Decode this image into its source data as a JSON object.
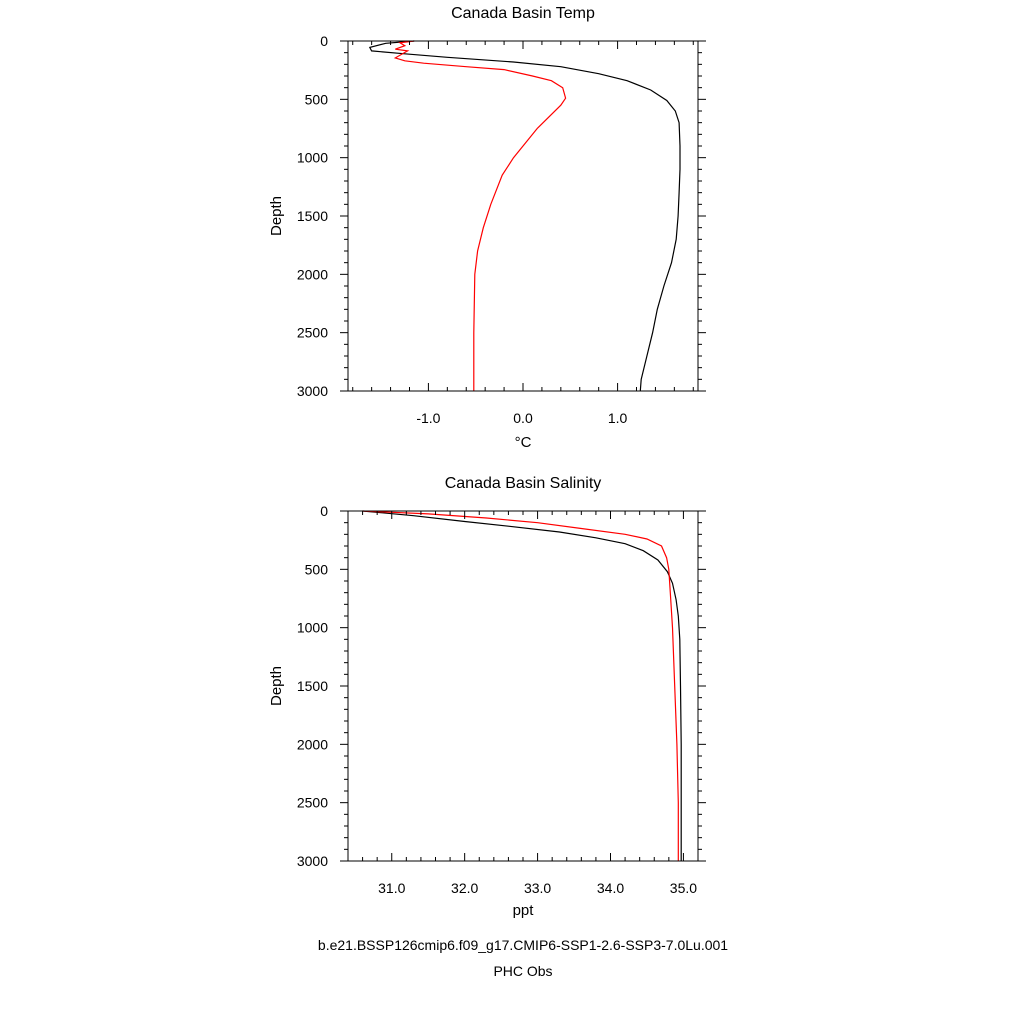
{
  "chart_data": [
    {
      "type": "line",
      "title": "Canada Basin Temp",
      "xlabel": "°C",
      "ylabel": "Depth",
      "xlim": [
        -1.85,
        1.85
      ],
      "ylim": [
        3000,
        0
      ],
      "xticks": [
        {
          "value": -1.0,
          "label": "-1.0"
        },
        {
          "value": 0.0,
          "label": "0.0"
        },
        {
          "value": 1.0,
          "label": "1.0"
        }
      ],
      "yticks": [
        {
          "value": 0,
          "label": "0"
        },
        {
          "value": 500,
          "label": "500"
        },
        {
          "value": 1000,
          "label": "1000"
        },
        {
          "value": 1500,
          "label": "1500"
        },
        {
          "value": 2000,
          "label": "2000"
        },
        {
          "value": 2500,
          "label": "2500"
        },
        {
          "value": 3000,
          "label": "3000"
        }
      ],
      "series": [
        {
          "color": "#000000",
          "points": [
            [
              -1.15,
              0
            ],
            [
              -1.45,
              20
            ],
            [
              -1.62,
              55
            ],
            [
              -1.6,
              85
            ],
            [
              -1.25,
              110
            ],
            [
              -0.8,
              140
            ],
            [
              -0.1,
              180
            ],
            [
              0.4,
              220
            ],
            [
              0.8,
              280
            ],
            [
              1.1,
              340
            ],
            [
              1.35,
              420
            ],
            [
              1.52,
              510
            ],
            [
              1.61,
              600
            ],
            [
              1.65,
              700
            ],
            [
              1.66,
              900
            ],
            [
              1.66,
              1100
            ],
            [
              1.65,
              1300
            ],
            [
              1.64,
              1500
            ],
            [
              1.62,
              1700
            ],
            [
              1.57,
              1900
            ],
            [
              1.49,
              2100
            ],
            [
              1.42,
              2300
            ],
            [
              1.37,
              2500
            ],
            [
              1.31,
              2700
            ],
            [
              1.25,
              2900
            ],
            [
              1.24,
              3000
            ]
          ]
        },
        {
          "color": "#ff0000",
          "points": [
            [
              -1.15,
              0
            ],
            [
              -1.3,
              15
            ],
            [
              -1.25,
              40
            ],
            [
              -1.35,
              70
            ],
            [
              -1.22,
              85
            ],
            [
              -1.35,
              145
            ],
            [
              -1.25,
              170
            ],
            [
              -1.05,
              190
            ],
            [
              -0.6,
              220
            ],
            [
              -0.2,
              245
            ],
            [
              0.1,
              300
            ],
            [
              0.3,
              340
            ],
            [
              0.42,
              400
            ],
            [
              0.45,
              490
            ],
            [
              0.4,
              550
            ],
            [
              0.15,
              750
            ],
            [
              -0.1,
              1000
            ],
            [
              -0.22,
              1150
            ],
            [
              -0.34,
              1400
            ],
            [
              -0.42,
              1600
            ],
            [
              -0.48,
              1800
            ],
            [
              -0.51,
              2000
            ],
            [
              -0.52,
              2500
            ],
            [
              -0.52,
              3000
            ]
          ]
        }
      ]
    },
    {
      "type": "line",
      "title": "Canada Basin Salinity",
      "xlabel": "ppt",
      "ylabel": "Depth",
      "xlim": [
        30.4,
        35.2
      ],
      "ylim": [
        3000,
        0
      ],
      "xticks": [
        {
          "value": 31.0,
          "label": "31.0"
        },
        {
          "value": 32.0,
          "label": "32.0"
        },
        {
          "value": 33.0,
          "label": "33.0"
        },
        {
          "value": 34.0,
          "label": "34.0"
        },
        {
          "value": 35.0,
          "label": "35.0"
        }
      ],
      "yticks": [
        {
          "value": 0,
          "label": "0"
        },
        {
          "value": 500,
          "label": "500"
        },
        {
          "value": 1000,
          "label": "1000"
        },
        {
          "value": 1500,
          "label": "1500"
        },
        {
          "value": 2000,
          "label": "2000"
        },
        {
          "value": 2500,
          "label": "2500"
        },
        {
          "value": 3000,
          "label": "3000"
        }
      ],
      "series": [
        {
          "color": "#000000",
          "points": [
            [
              30.6,
              0
            ],
            [
              31.3,
              40
            ],
            [
              32.0,
              90
            ],
            [
              32.6,
              130
            ],
            [
              33.3,
              180
            ],
            [
              33.8,
              230
            ],
            [
              34.2,
              280
            ],
            [
              34.45,
              340
            ],
            [
              34.65,
              420
            ],
            [
              34.78,
              520
            ],
            [
              34.85,
              620
            ],
            [
              34.9,
              760
            ],
            [
              34.93,
              900
            ],
            [
              34.95,
              1100
            ],
            [
              34.96,
              1500
            ],
            [
              34.97,
              2000
            ],
            [
              34.97,
              2500
            ],
            [
              34.97,
              3000
            ]
          ]
        },
        {
          "color": "#ff0000",
          "points": [
            [
              30.6,
              0
            ],
            [
              31.5,
              25
            ],
            [
              32.3,
              60
            ],
            [
              33.0,
              100
            ],
            [
              33.6,
              150
            ],
            [
              34.2,
              200
            ],
            [
              34.5,
              240
            ],
            [
              34.7,
              300
            ],
            [
              34.77,
              400
            ],
            [
              34.8,
              500
            ],
            [
              34.82,
              700
            ],
            [
              34.85,
              1000
            ],
            [
              34.88,
              1500
            ],
            [
              34.91,
              2000
            ],
            [
              34.93,
              2500
            ],
            [
              34.93,
              3000
            ]
          ]
        }
      ]
    }
  ],
  "footer": {
    "case_name": "b.e21.BSSP126cmip6.f09_g17.CMIP6-SSP1-2.6-SSP3-7.0Lu.001",
    "case_color": "#000000",
    "obs_label": "PHC Obs",
    "obs_color": "#ff0000"
  }
}
